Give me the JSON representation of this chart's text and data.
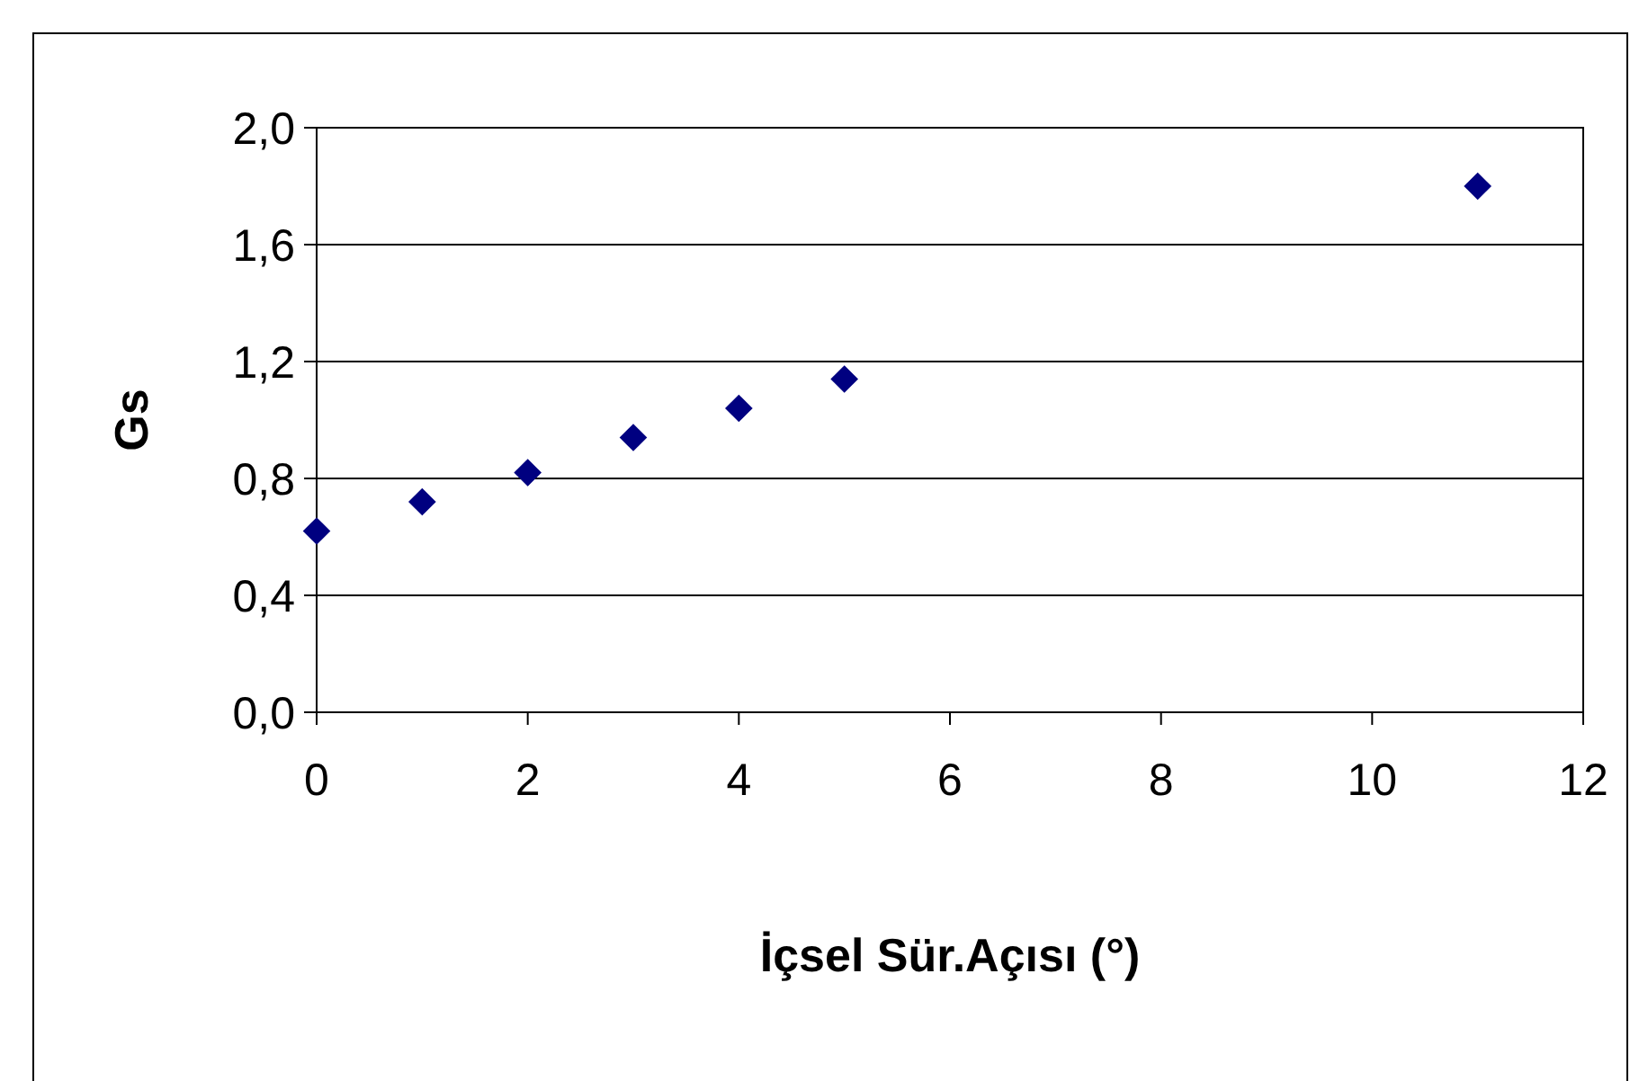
{
  "chart_data": {
    "type": "scatter",
    "xlabel": "İçsel Sür.Açısı (°)",
    "ylabel": "Gs",
    "x": [
      0,
      1,
      2,
      3,
      4,
      5,
      11
    ],
    "values": [
      0.62,
      0.72,
      0.82,
      0.94,
      1.04,
      1.14,
      1.8
    ],
    "color": "#000080",
    "marker": "diamond",
    "xlim": [
      0,
      12
    ],
    "xticks": [
      0,
      2,
      4,
      6,
      8,
      10,
      12
    ],
    "ylim": [
      0,
      2.0
    ],
    "yticks": [
      {
        "value": 0,
        "label": "0,0"
      },
      {
        "value": 0.4,
        "label": "0,4"
      },
      {
        "value": 0.8,
        "label": "0,8"
      },
      {
        "value": 1.2,
        "label": "1,2"
      },
      {
        "value": 1.6,
        "label": "1,6"
      },
      {
        "value": 2.0,
        "label": "2,0"
      }
    ],
    "grid": "y"
  }
}
